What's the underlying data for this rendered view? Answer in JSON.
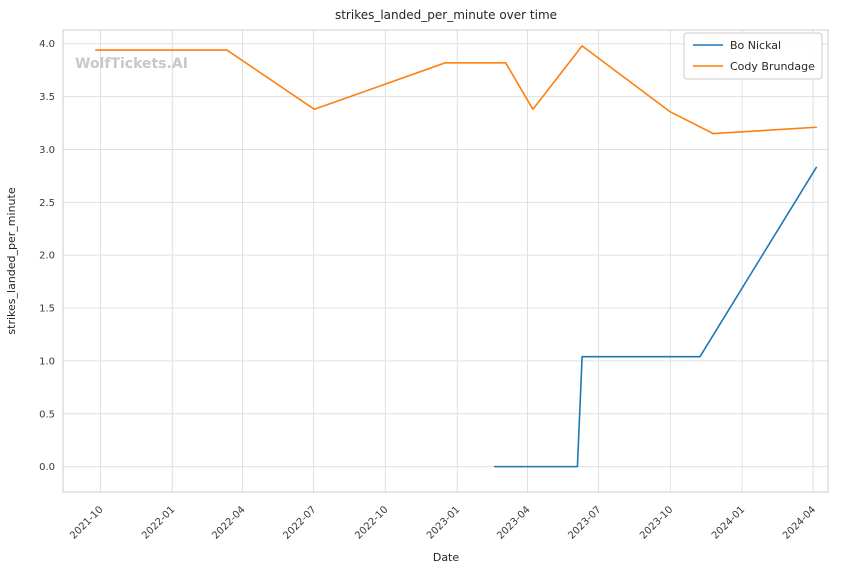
{
  "chart_data": {
    "type": "line",
    "title": "strikes_landed_per_minute over time",
    "xlabel": "Date",
    "ylabel": "strikes_landed_per_minute",
    "watermark": "WolfTickets.AI",
    "legend_position": "upper right",
    "grid": true,
    "xlim": [
      "2021-08-14",
      "2024-04-20"
    ],
    "ylim": [
      -0.24,
      4.13
    ],
    "x_ticks": [
      "2021-10",
      "2022-01",
      "2022-04",
      "2022-07",
      "2022-10",
      "2023-01",
      "2023-04",
      "2023-07",
      "2023-10",
      "2024-01",
      "2024-04"
    ],
    "y_ticks": [
      "0.0",
      "0.5",
      "1.0",
      "1.5",
      "2.0",
      "2.5",
      "3.0",
      "3.5",
      "4.0"
    ],
    "series": [
      {
        "name": "Bo Nickal",
        "color": "#1f77b4",
        "points": [
          [
            "2023-02-18",
            0.0
          ],
          [
            "2023-06-04",
            0.0
          ],
          [
            "2023-06-10",
            1.04
          ],
          [
            "2023-11-08",
            1.04
          ],
          [
            "2024-04-05",
            2.83
          ]
        ]
      },
      {
        "name": "Cody Brundage",
        "color": "#ff7f0e",
        "points": [
          [
            "2021-09-25",
            3.94
          ],
          [
            "2022-03-12",
            3.94
          ],
          [
            "2022-07-02",
            3.38
          ],
          [
            "2022-12-17",
            3.82
          ],
          [
            "2023-03-04",
            3.82
          ],
          [
            "2023-04-08",
            3.38
          ],
          [
            "2023-06-10",
            3.98
          ],
          [
            "2023-09-30",
            3.36
          ],
          [
            "2023-11-25",
            3.15
          ],
          [
            "2024-04-05",
            3.21
          ]
        ]
      }
    ],
    "colors": {
      "grid": "#e0e0e0",
      "frame": "#cccccc",
      "text": "#262626",
      "tick_text": "#3a3a3a",
      "watermark": "#c8c8c8",
      "background": "#ffffff"
    }
  }
}
